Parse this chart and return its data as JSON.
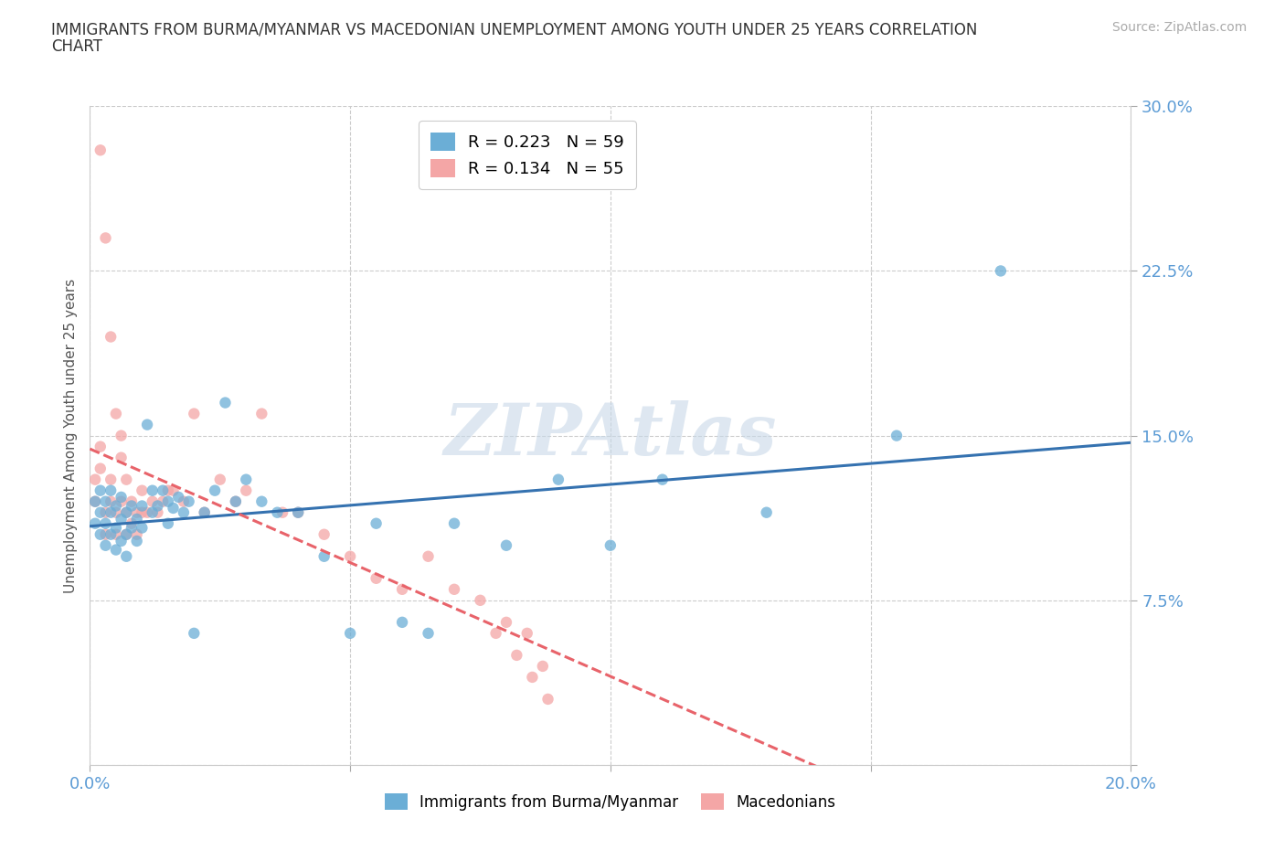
{
  "title": "IMMIGRANTS FROM BURMA/MYANMAR VS MACEDONIAN UNEMPLOYMENT AMONG YOUTH UNDER 25 YEARS CORRELATION\nCHART",
  "source": "Source: ZipAtlas.com",
  "xlabel": "",
  "ylabel": "Unemployment Among Youth under 25 years",
  "xlim": [
    0,
    0.2
  ],
  "ylim": [
    0,
    0.3
  ],
  "xticks": [
    0.0,
    0.05,
    0.1,
    0.15,
    0.2
  ],
  "yticks": [
    0.0,
    0.075,
    0.15,
    0.225,
    0.3
  ],
  "series1_label": "Immigrants from Burma/Myanmar",
  "series2_label": "Macedonians",
  "R1": 0.223,
  "N1": 59,
  "R2": 0.134,
  "N2": 55,
  "color1": "#6baed6",
  "color2": "#f4a6a6",
  "trendline1_color": "#3572b0",
  "trendline2_color": "#e8636a",
  "trendline2_dashed": true,
  "watermark": "ZIPAtlas",
  "watermark_color": "#c8d8e8",
  "background_color": "#ffffff",
  "scatter_alpha": 0.75,
  "scatter_size": 80,
  "blue_x": [
    0.001,
    0.001,
    0.002,
    0.002,
    0.002,
    0.003,
    0.003,
    0.003,
    0.004,
    0.004,
    0.004,
    0.005,
    0.005,
    0.005,
    0.006,
    0.006,
    0.006,
    0.007,
    0.007,
    0.007,
    0.008,
    0.008,
    0.009,
    0.009,
    0.01,
    0.01,
    0.011,
    0.012,
    0.012,
    0.013,
    0.014,
    0.015,
    0.015,
    0.016,
    0.017,
    0.018,
    0.019,
    0.02,
    0.022,
    0.024,
    0.026,
    0.028,
    0.03,
    0.033,
    0.036,
    0.04,
    0.045,
    0.05,
    0.055,
    0.06,
    0.065,
    0.07,
    0.08,
    0.09,
    0.1,
    0.11,
    0.13,
    0.155,
    0.175
  ],
  "blue_y": [
    0.12,
    0.11,
    0.125,
    0.115,
    0.105,
    0.12,
    0.11,
    0.1,
    0.115,
    0.125,
    0.105,
    0.118,
    0.108,
    0.098,
    0.112,
    0.122,
    0.102,
    0.115,
    0.105,
    0.095,
    0.118,
    0.108,
    0.112,
    0.102,
    0.118,
    0.108,
    0.155,
    0.125,
    0.115,
    0.118,
    0.125,
    0.12,
    0.11,
    0.117,
    0.122,
    0.115,
    0.12,
    0.06,
    0.115,
    0.125,
    0.165,
    0.12,
    0.13,
    0.12,
    0.115,
    0.115,
    0.095,
    0.06,
    0.11,
    0.065,
    0.06,
    0.11,
    0.1,
    0.13,
    0.1,
    0.13,
    0.115,
    0.15,
    0.225
  ],
  "pink_x": [
    0.001,
    0.001,
    0.002,
    0.002,
    0.002,
    0.003,
    0.003,
    0.003,
    0.004,
    0.004,
    0.004,
    0.005,
    0.005,
    0.005,
    0.006,
    0.006,
    0.006,
    0.007,
    0.007,
    0.007,
    0.008,
    0.008,
    0.009,
    0.009,
    0.01,
    0.01,
    0.011,
    0.012,
    0.013,
    0.014,
    0.015,
    0.016,
    0.018,
    0.02,
    0.022,
    0.025,
    0.028,
    0.03,
    0.033,
    0.037,
    0.04,
    0.045,
    0.05,
    0.055,
    0.06,
    0.065,
    0.07,
    0.075,
    0.078,
    0.08,
    0.082,
    0.084,
    0.085,
    0.087,
    0.088
  ],
  "pink_y": [
    0.13,
    0.12,
    0.145,
    0.135,
    0.28,
    0.24,
    0.115,
    0.105,
    0.13,
    0.12,
    0.195,
    0.115,
    0.105,
    0.16,
    0.15,
    0.14,
    0.12,
    0.13,
    0.115,
    0.105,
    0.12,
    0.11,
    0.115,
    0.105,
    0.125,
    0.115,
    0.115,
    0.12,
    0.115,
    0.12,
    0.125,
    0.125,
    0.12,
    0.16,
    0.115,
    0.13,
    0.12,
    0.125,
    0.16,
    0.115,
    0.115,
    0.105,
    0.095,
    0.085,
    0.08,
    0.095,
    0.08,
    0.075,
    0.06,
    0.065,
    0.05,
    0.06,
    0.04,
    0.045,
    0.03
  ]
}
